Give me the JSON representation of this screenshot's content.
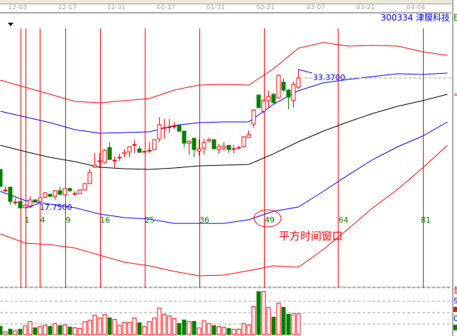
{
  "header": {
    "dates": [
      "12-03",
      "12-17",
      "12-31",
      "01-17",
      "01-31",
      "02-21",
      "03-07",
      "03-21",
      "04-04"
    ],
    "ticker": "300334",
    "name": "津膜科技"
  },
  "colors": {
    "up": "#ff0000",
    "down": "#008000",
    "band_outer": "#ff0000",
    "band_inner": "#0000ff",
    "mid": "#000000",
    "grid": "#a0a0a0"
  },
  "annotations": {
    "low_label": "17.7500",
    "high_label": "33.3700",
    "window_label": "平方时间窗口",
    "circled": "49",
    "square_numbers": [
      "1",
      "4",
      "9",
      "16",
      "25",
      "36",
      "49",
      "64",
      "81"
    ]
  },
  "right_axis": {
    "vol_label": "量",
    "v9": "9",
    "v0": "0",
    "top_char": "E",
    "eq": "="
  },
  "chart_data": {
    "type": "candlestick",
    "candles": [
      [
        22.13,
        20.22,
        22.13,
        20.22
      ],
      [
        19.82,
        19.82,
        20.22,
        19.58
      ],
      [
        20.14,
        18.54,
        20.14,
        18.14
      ],
      [
        18.46,
        18.46,
        18.86,
        18.14
      ],
      [
        18.54,
        17.8,
        18.54,
        17.75
      ],
      [
        17.83,
        18.1,
        18.2,
        17.75
      ],
      [
        17.91,
        18.7,
        19.1,
        17.78
      ],
      [
        18.7,
        18.46,
        18.8,
        18.4
      ],
      [
        18.54,
        18.94,
        19.1,
        18.4
      ],
      [
        19.02,
        19.5,
        19.6,
        18.9
      ],
      [
        19.34,
        19.1,
        19.4,
        19.0
      ],
      [
        19.1,
        19.74,
        19.8,
        18.7
      ],
      [
        19.74,
        19.34,
        20.2,
        19.2
      ],
      [
        19.26,
        19.98,
        20.0,
        19.2
      ],
      [
        19.98,
        19.74,
        20.1,
        19.6
      ],
      [
        19.42,
        19.42,
        19.7,
        19.2
      ],
      [
        19.42,
        19.82,
        19.9,
        19.4
      ],
      [
        19.82,
        20.54,
        20.6,
        19.8
      ],
      [
        20.54,
        21.81,
        22.2,
        20.5
      ],
      [
        22.38,
        22.6,
        24.0,
        22.3
      ],
      [
        23.09,
        23.09,
        23.97,
        22.29
      ],
      [
        22.93,
        24.28,
        24.4,
        22.8
      ],
      [
        24.6,
        23.25,
        25.2,
        23.2
      ],
      [
        23.17,
        23.17,
        23.6,
        22.3
      ],
      [
        23.5,
        23.5,
        23.9,
        23.1
      ],
      [
        23.9,
        24.05,
        24.4,
        23.5
      ],
      [
        24.1,
        24.68,
        24.7,
        23.5
      ],
      [
        24.92,
        24.92,
        25.4,
        24.0
      ],
      [
        24.44,
        24.05,
        24.7,
        24.0
      ],
      [
        24.1,
        24.15,
        24.2,
        24.05
      ],
      [
        24.28,
        24.28,
        25.2,
        24.0
      ],
      [
        24.36,
        25.48,
        25.5,
        24.3
      ],
      [
        25.56,
        27.15,
        28.0,
        25.2
      ],
      [
        26.83,
        26.83,
        27.8,
        25.6
      ],
      [
        26.9,
        26.9,
        27.8,
        26.2
      ],
      [
        27.0,
        27.0,
        27.5,
        26.7
      ],
      [
        27.07,
        26.43,
        27.1,
        26.4
      ],
      [
        26.43,
        25.08,
        26.43,
        24.6
      ],
      [
        25.08,
        25.3,
        25.4,
        23.8
      ],
      [
        25.64,
        24.36,
        25.64,
        23.5
      ],
      [
        24.2,
        24.44,
        25.5,
        23.7
      ],
      [
        24.52,
        25.16,
        25.6,
        23.8
      ],
      [
        25.32,
        25.48,
        25.7,
        25.2
      ],
      [
        25.48,
        24.44,
        25.48,
        24.4
      ],
      [
        24.36,
        24.68,
        25.0,
        23.9
      ],
      [
        24.52,
        24.76,
        25.2,
        24.2
      ],
      [
        24.84,
        24.36,
        24.84,
        24.0
      ],
      [
        24.44,
        24.46,
        24.9,
        23.9
      ],
      [
        24.6,
        24.6,
        24.8,
        24.4
      ],
      [
        24.68,
        25.8,
        25.85,
        24.6
      ],
      [
        25.72,
        26.04,
        26.5,
        25.7
      ],
      [
        27.23,
        28.82,
        28.9,
        26.8
      ],
      [
        30.5,
        29.07,
        30.5,
        29.07
      ],
      [
        28.66,
        29.86,
        30.0,
        28.5
      ],
      [
        29.86,
        30.34,
        31.0,
        29.1
      ],
      [
        30.58,
        29.62,
        30.7,
        29.6
      ],
      [
        30.18,
        32.73,
        32.8,
        30.1
      ],
      [
        31.94,
        31.06,
        32.4,
        30.9
      ],
      [
        31.06,
        30.26,
        31.2,
        28.9
      ],
      [
        29.86,
        31.7,
        32.0,
        29.1
      ],
      [
        31.38,
        32.41,
        33.37,
        31.2
      ]
    ],
    "candle_fields": [
      "open",
      "close",
      "high",
      "low"
    ],
    "volume": [
      35,
      12,
      23,
      16,
      23,
      37,
      55,
      29,
      34,
      40,
      35,
      46,
      38,
      41,
      32,
      29,
      26,
      55,
      61,
      82,
      70,
      85,
      71,
      64,
      38,
      52,
      52,
      70,
      50,
      34,
      55,
      70,
      112,
      86,
      79,
      68,
      47,
      62,
      55,
      56,
      28,
      58,
      46,
      38,
      34,
      31,
      26,
      22,
      23,
      46,
      40,
      118,
      182,
      182,
      115,
      74,
      133,
      116,
      86,
      88,
      88
    ],
    "band_index": [
      0,
      5,
      10,
      15,
      20,
      25,
      30,
      35,
      40,
      45,
      50,
      55,
      60,
      65,
      70,
      75,
      80,
      85,
      90
    ],
    "bands": {
      "upper_outer": [
        32.17,
        31.38,
        30.58,
        29.78,
        29.62,
        29.86,
        30.1,
        31.06,
        31.62,
        31.7,
        31.62,
        33.45,
        35.76,
        36.4,
        36.0,
        36.08,
        36.0,
        35.36,
        34.96
      ],
      "upper_inner": [
        28.67,
        28.03,
        27.39,
        26.6,
        26.2,
        26.28,
        26.36,
        27.07,
        27.39,
        27.47,
        27.47,
        29.46,
        30.98,
        31.86,
        32.25,
        32.57,
        32.89,
        32.81,
        32.97
      ],
      "middle": [
        24.84,
        24.13,
        23.49,
        23.01,
        22.37,
        22.21,
        22.13,
        22.29,
        22.53,
        22.61,
        22.69,
        23.89,
        25.24,
        26.44,
        27.47,
        28.43,
        29.23,
        29.86,
        30.58
      ],
      "lower_inner": [
        19.66,
        18.63,
        18.23,
        17.83,
        17.11,
        16.71,
        16.55,
        16.07,
        16.07,
        16.07,
        16.47,
        17.43,
        17.91,
        19.66,
        21.49,
        23.25,
        24.68,
        25.88,
        27.47
      ],
      "lower_outer": [
        14.88,
        13.84,
        13.68,
        13.29,
        12.49,
        11.69,
        11.29,
        10.66,
        10.18,
        10.26,
        10.74,
        11.29,
        11.13,
        13.13,
        15.44,
        17.83,
        19.9,
        22.29,
        24.84
      ]
    },
    "time_window_lines": [
      1,
      4,
      9,
      16,
      25,
      36,
      49,
      64,
      81
    ],
    "low": 17.75,
    "high": 33.37
  }
}
